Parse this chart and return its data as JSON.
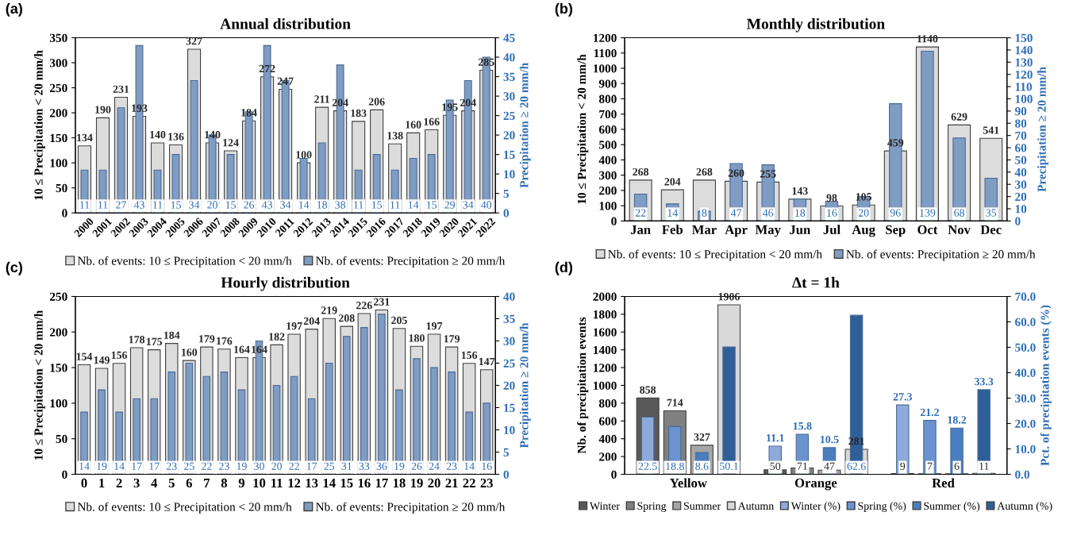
{
  "chart_data": [
    {
      "type": "bar",
      "title": "Annual distribution",
      "annotations": [
        "(a)"
      ],
      "ylabel": "10 ≤ Precipitation < 20 mm/h",
      "y2label": "Precipitation ≥ 20 mm/h",
      "categories": [
        "2000",
        "2001",
        "2002",
        "2003",
        "2004",
        "2005",
        "2006",
        "2007",
        "2008",
        "2009",
        "2010",
        "2011",
        "2012",
        "2013",
        "2014",
        "2015",
        "2016",
        "2017",
        "2018",
        "2019",
        "2020",
        "2021",
        "2022"
      ],
      "series": [
        {
          "name": "Nb. of events: 10 ≤ Precipitation < 20 mm/h",
          "color": "#dcdcdc",
          "values": [
            134,
            190,
            231,
            193,
            140,
            136,
            327,
            140,
            124,
            184,
            272,
            247,
            100,
            211,
            204,
            183,
            206,
            138,
            160,
            166,
            195,
            204,
            285
          ]
        },
        {
          "name": "Nb. of events: Precipitation ≥ 20 mm/h",
          "color": "#7f9cc3",
          "axis": "y2",
          "values": [
            11,
            11,
            27,
            43,
            11,
            15,
            34,
            20,
            15,
            26,
            43,
            34,
            14,
            18,
            38,
            11,
            15,
            11,
            14,
            15,
            29,
            34,
            40
          ]
        }
      ],
      "ylim": [
        0,
        350
      ],
      "yticks": [
        0,
        50,
        100,
        150,
        200,
        250,
        300,
        350
      ],
      "y2lim": [
        0,
        45
      ],
      "y2ticks": [
        0,
        5,
        10,
        15,
        20,
        25,
        30,
        35,
        40,
        45
      ],
      "data_labels": true,
      "grid": false,
      "legend": "bottom"
    },
    {
      "type": "bar",
      "title": "Monthly distribution",
      "annotations": [
        "(b)"
      ],
      "ylabel": "10 ≤ Precipitation < 20 mm/h",
      "y2label": "Precipitation ≥ 20 mm/h",
      "categories": [
        "Jan",
        "Feb",
        "Mar",
        "Apr",
        "May",
        "Jun",
        "Jul",
        "Aug",
        "Sep",
        "Oct",
        "Nov",
        "Dec"
      ],
      "series": [
        {
          "name": "Nb. of events: 10 ≤ Precipitation < 20 mm/h",
          "color": "#dcdcdc",
          "values": [
            268,
            204,
            268,
            260,
            255,
            143,
            98,
            105,
            459,
            1140,
            629,
            541
          ]
        },
        {
          "name": "Nb. of events: Precipitation ≥ 20 mm/h",
          "color": "#7f9cc3",
          "axis": "y2",
          "values": [
            22,
            14,
            8,
            47,
            46,
            18,
            16,
            20,
            96,
            139,
            68,
            35
          ]
        }
      ],
      "ylim": [
        0,
        1200
      ],
      "yticks": [
        0,
        100,
        200,
        300,
        400,
        500,
        600,
        700,
        800,
        900,
        1000,
        1100,
        1200
      ],
      "y2lim": [
        0,
        150
      ],
      "y2ticks": [
        0,
        10,
        20,
        30,
        40,
        50,
        60,
        70,
        80,
        90,
        100,
        110,
        120,
        130,
        140,
        150
      ],
      "data_labels": true,
      "grid": false,
      "legend": "bottom"
    },
    {
      "type": "bar",
      "title": "Hourly distribution",
      "annotations": [
        "(c)"
      ],
      "ylabel": "10 ≤ Precipitation < 20 mm/h",
      "y2label": "Precipitation ≥ 20 mm/h",
      "categories": [
        "0",
        "1",
        "2",
        "3",
        "4",
        "5",
        "6",
        "7",
        "8",
        "9",
        "10",
        "11",
        "12",
        "13",
        "14",
        "15",
        "16",
        "17",
        "18",
        "19",
        "20",
        "21",
        "22",
        "23"
      ],
      "series": [
        {
          "name": "Nb. of events: 10 ≤ Precipitation < 20 mm/h",
          "color": "#dcdcdc",
          "values": [
            154,
            149,
            156,
            178,
            175,
            184,
            160,
            179,
            176,
            164,
            164,
            182,
            197,
            204,
            219,
            208,
            226,
            231,
            205,
            180,
            197,
            179,
            156,
            147
          ]
        },
        {
          "name": "Nb. of events: Precipitation ≥ 20 mm/h",
          "color": "#7f9cc3",
          "axis": "y2",
          "values": [
            14,
            19,
            14,
            17,
            17,
            23,
            25,
            22,
            23,
            19,
            30,
            20,
            22,
            17,
            25,
            31,
            33,
            36,
            19,
            26,
            24,
            23,
            14,
            16
          ]
        }
      ],
      "ylim": [
        0,
        250
      ],
      "yticks": [
        0,
        50,
        100,
        150,
        200,
        250
      ],
      "y2lim": [
        0,
        40
      ],
      "y2ticks": [
        0,
        5,
        10,
        15,
        20,
        25,
        30,
        35,
        40
      ],
      "data_labels": true,
      "grid": false,
      "legend": "bottom"
    },
    {
      "type": "bar",
      "title": "Δt = 1h",
      "annotations": [
        "(d)"
      ],
      "ylabel": "Nb. of precipitation events",
      "y2label": "Pct. of precipitation events (%)",
      "categories": [
        "Yellow",
        "Orange",
        "Red"
      ],
      "series": [
        {
          "name": "Winter",
          "color": "#595959",
          "values": [
            858,
            50,
            9
          ]
        },
        {
          "name": "Spring",
          "color": "#808080",
          "values": [
            714,
            71,
            7
          ]
        },
        {
          "name": "Summer",
          "color": "#a6a6a6",
          "values": [
            327,
            47,
            6
          ]
        },
        {
          "name": "Autumn",
          "color": "#d9d9d9",
          "values": [
            1906,
            281,
            11
          ]
        },
        {
          "name": "Winter (%)",
          "color": "#8eaadb",
          "axis": "y2",
          "values": [
            22.5,
            11.1,
            27.3
          ]
        },
        {
          "name": "Spring (%)",
          "color": "#6a93cf",
          "axis": "y2",
          "values": [
            18.8,
            15.8,
            21.2
          ]
        },
        {
          "name": "Summer (%)",
          "color": "#4a7ebf",
          "axis": "y2",
          "values": [
            8.6,
            10.5,
            18.2
          ]
        },
        {
          "name": "Autumn (%)",
          "color": "#2e5f99",
          "axis": "y2",
          "values": [
            50.1,
            62.6,
            33.3
          ]
        }
      ],
      "ylim": [
        0,
        2000
      ],
      "yticks": [
        0,
        200,
        400,
        600,
        800,
        1000,
        1200,
        1400,
        1600,
        1800,
        2000
      ],
      "y2lim": [
        0,
        70
      ],
      "y2ticks": [
        {
          "value": 0,
          "label": "0.0"
        },
        {
          "value": 10,
          "label": "10.0"
        },
        {
          "value": 20,
          "label": "20.0"
        },
        {
          "value": 30,
          "label": "30.0"
        },
        {
          "value": 40,
          "label": "40.0"
        },
        {
          "value": 50,
          "label": "50.0"
        },
        {
          "value": 60,
          "label": "60.0"
        },
        {
          "value": 70,
          "label": "70.0"
        }
      ],
      "data_labels": true,
      "grid": false,
      "legend": "bottom"
    }
  ]
}
